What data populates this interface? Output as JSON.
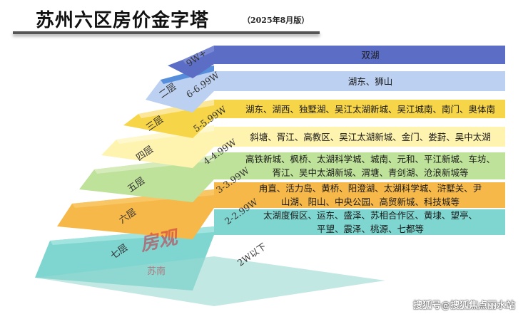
{
  "title": "苏州六区房价金字塔",
  "edition": "（2025年8月版）",
  "tiers": [
    {
      "level": "",
      "price": "9W+",
      "areas": "双湖",
      "color": "#5b6dc4",
      "top": "#7c8bd6"
    },
    {
      "level": "二层",
      "price": "6-6.99W",
      "areas": "湖东、狮山",
      "color": "#bcd0f2",
      "top": "#4a86d8"
    },
    {
      "level": "三层",
      "price": "5-5.99W",
      "areas": "湖东、湖西、独墅湖、吴江太湖新城、吴江城南、南门、奥体南",
      "color": "#f7d548",
      "top": "#fbe9a0"
    },
    {
      "level": "四层",
      "price": "4-4.99W",
      "areas": "斜塘、胥江、高教区、吴江太湖新城、金门、娄葑、吴中太湖",
      "color": "#fff3b0",
      "top": "#fff8d0"
    },
    {
      "level": "五层",
      "price": "3-3.99W",
      "areas": "高铁新城、枫桥、太湖科学城、城南、元和、平江新城、车坊、\n胥江、吴中太湖新城、渭塘、青剑湖、沧浪新城等",
      "color": "#bfe29a",
      "top": "#d7ecbd"
    },
    {
      "level": "六层",
      "price": "2-2.99W",
      "areas": "甪直、活力岛、黄桥、阳澄湖、太湖科学城、浒墅关、尹\n山湖、阳山、中央公园、高贸新城、科技城等",
      "color": "#f7b84a",
      "top": "#f8c868"
    },
    {
      "level": "七层",
      "price": "2W以下",
      "areas": "太湖度假区、运东、盛泽、苏相合作区、黄埭、望亭、\n平望、震泽、桃源、七都等",
      "color": "#7fd6d0",
      "top": "#a5e4df"
    }
  ],
  "watermark": "房观",
  "watermark_sub": "苏南",
  "credit": "搜狐号@搜狐焦点丽水站"
}
